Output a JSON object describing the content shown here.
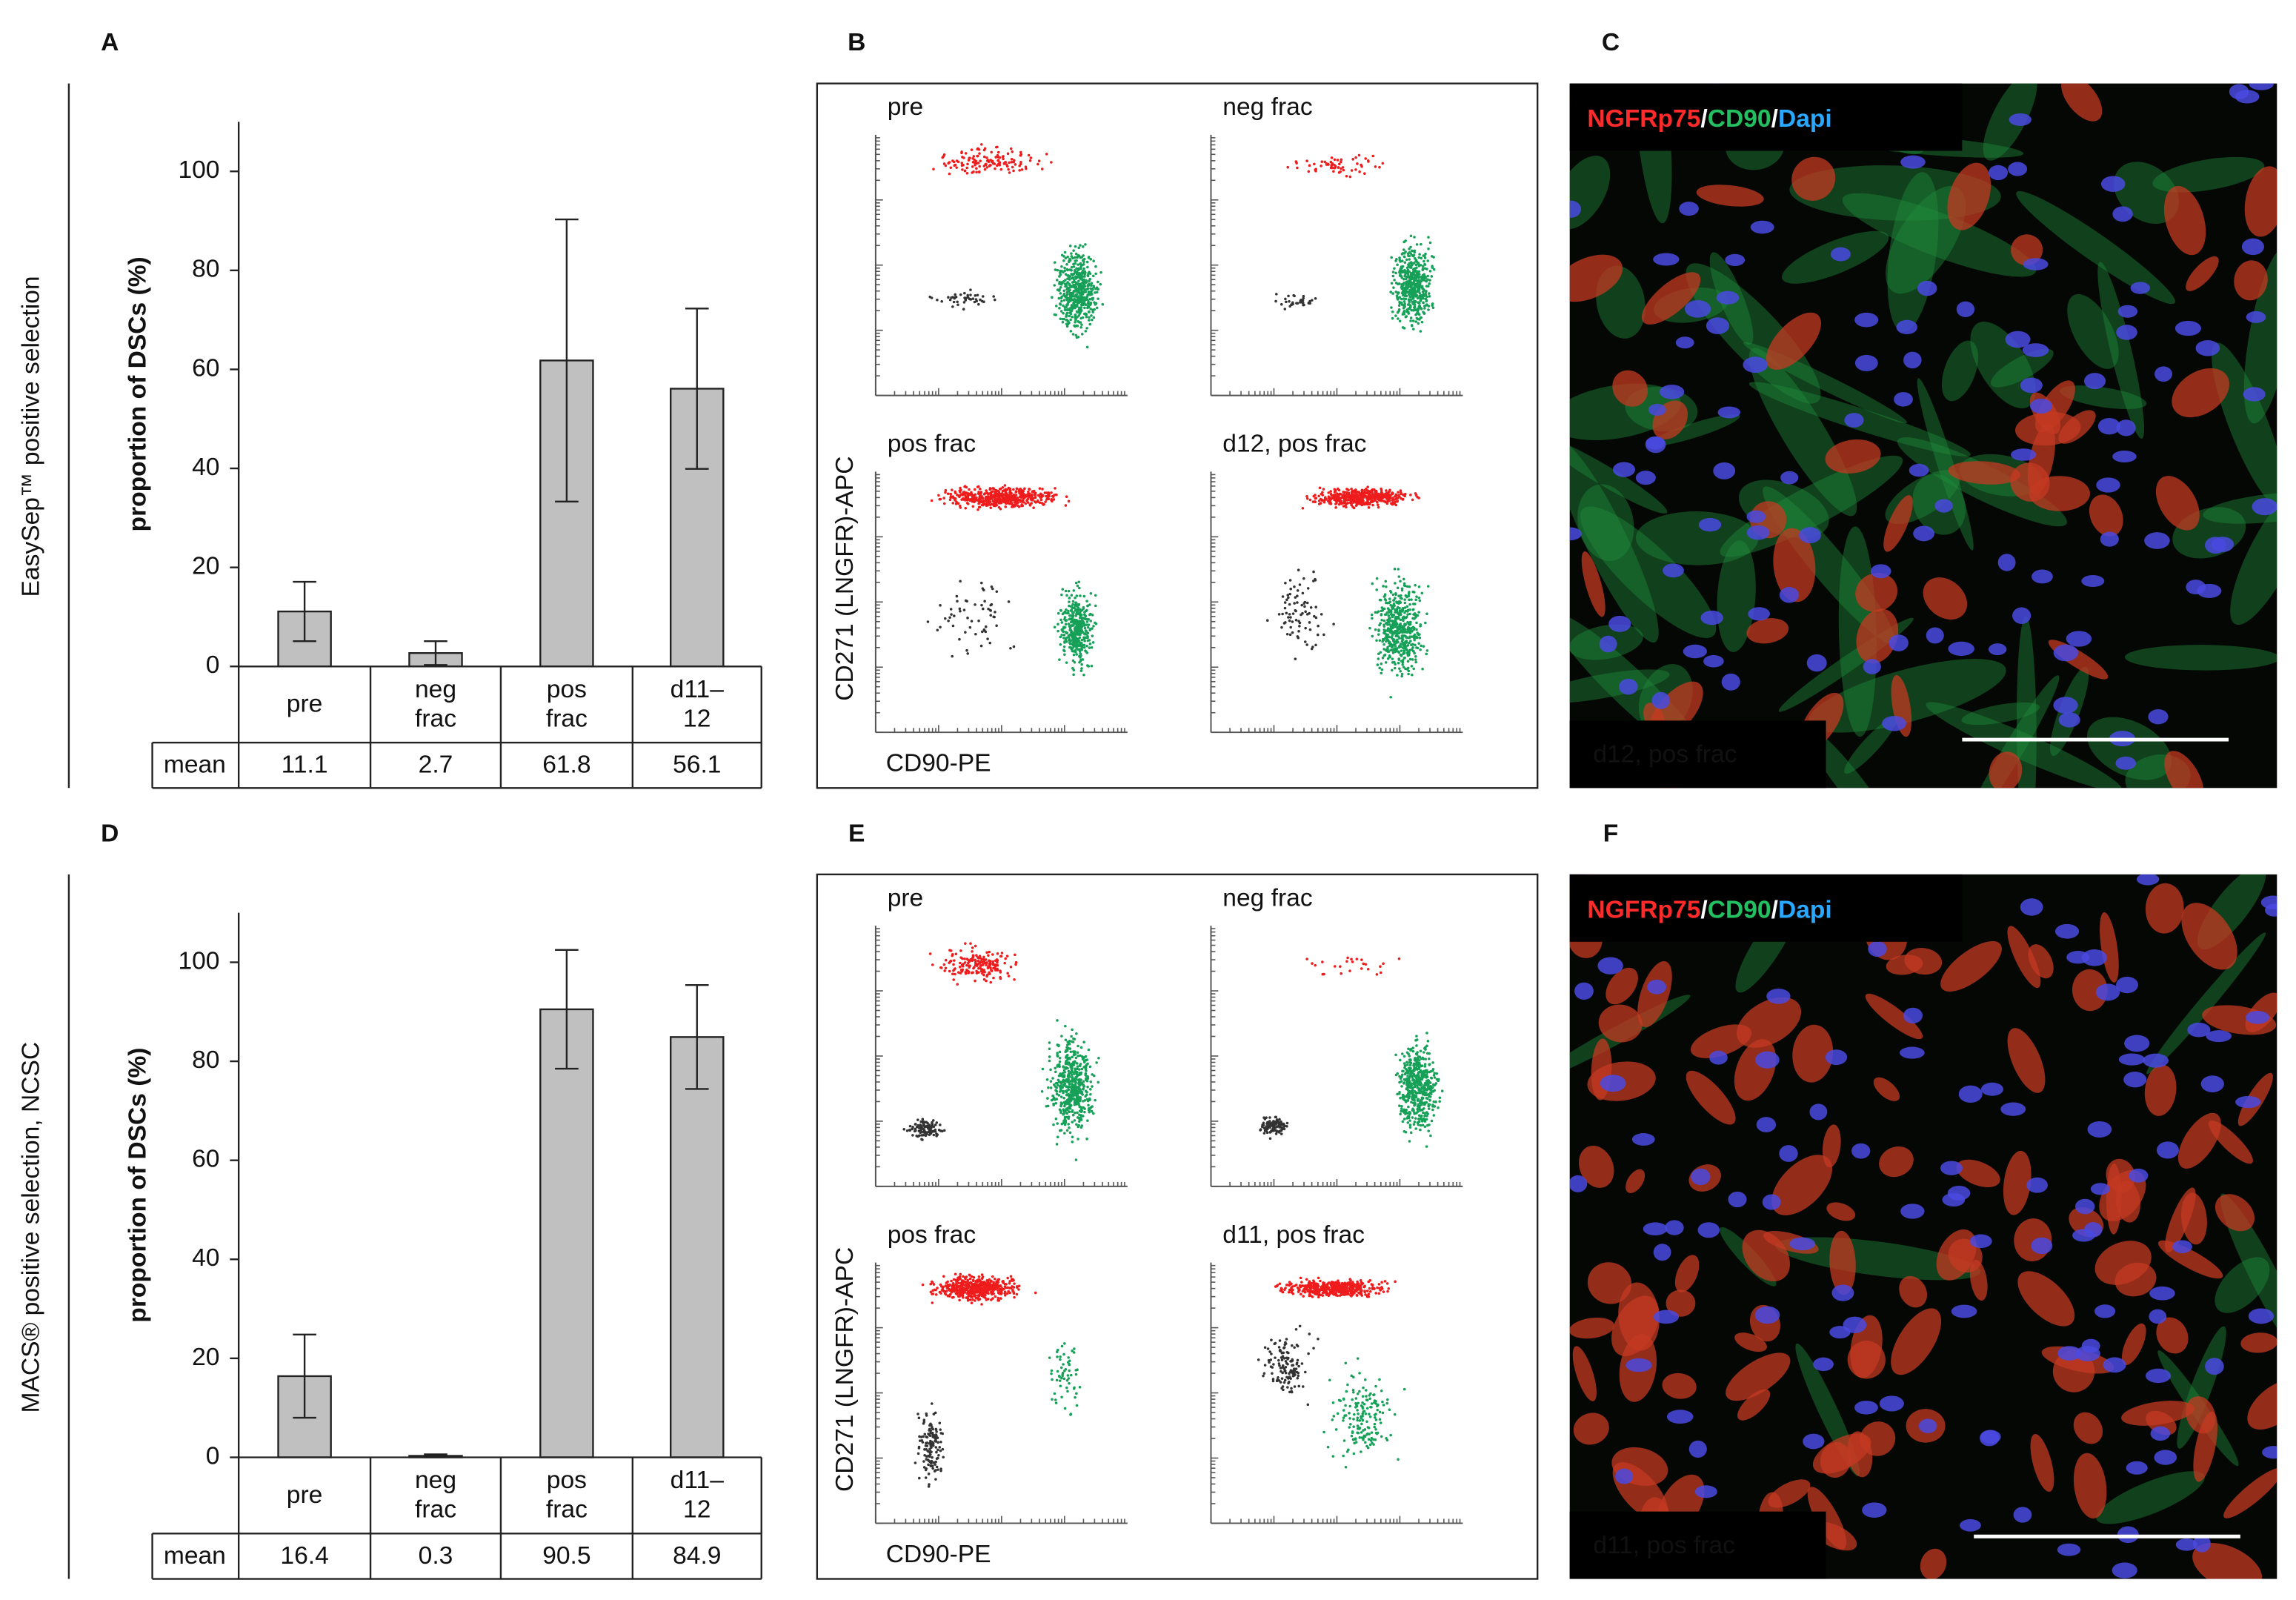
{
  "chart_data": [
    {
      "type": "bar",
      "ylabel": "proportion of DSCs (%)",
      "categories": [
        "pre",
        "neg frac",
        "pos frac",
        "d11–12"
      ],
      "values": [
        11.1,
        2.7,
        61.8,
        56.1
      ],
      "errors": [
        6,
        2.4,
        28.5,
        16.2
      ],
      "table_row_label": "mean",
      "color": "#c0c0c0",
      "ylim": [
        0,
        110
      ],
      "yticks": [
        0,
        20,
        40,
        60,
        80,
        100
      ]
    },
    {
      "type": "bar",
      "ylabel": "proportion of DSCs (%)",
      "categories": [
        "pre",
        "neg frac",
        "pos frac",
        "d11–12"
      ],
      "values": [
        16.4,
        0.3,
        90.5,
        84.9
      ],
      "errors": [
        8.4,
        0.3,
        12,
        10.5
      ],
      "table_row_label": "mean",
      "color": "#c0c0c0",
      "ylim": [
        0,
        110
      ],
      "yticks": [
        0,
        20,
        40,
        60,
        80,
        100
      ]
    }
  ],
  "rows": [
    {
      "chart_letter": "A",
      "side_label": "EasySep™ positive selection",
      "flow": {
        "letter": "B",
        "y_label": "CD271 (LNGFR)-APC",
        "x_label": "CD90-PE",
        "plots": [
          "pre",
          "neg frac",
          "pos frac",
          "d12, pos frac"
        ]
      },
      "image": {
        "letter": "C",
        "stain": [
          {
            "text": "NGFRp75",
            "color": "#ff2a2a"
          },
          {
            "text": "/",
            "color": "#ffffff"
          },
          {
            "text": "CD90",
            "color": "#22c060"
          },
          {
            "text": "/",
            "color": "#ffffff"
          },
          {
            "text": "Dapi",
            "color": "#2aa8ff"
          }
        ],
        "caption": "d12, pos frac"
      }
    },
    {
      "chart_letter": "D",
      "side_label": "MACS® positive selection, NCSC",
      "flow": {
        "letter": "E",
        "y_label": "CD271 (LNGFR)-APC",
        "x_label": "CD90-PE",
        "plots": [
          "pre",
          "neg frac",
          "pos frac",
          "d11, pos frac"
        ]
      },
      "image": {
        "letter": "F",
        "stain": [
          {
            "text": "NGFRp75",
            "color": "#ff2a2a"
          },
          {
            "text": "/",
            "color": "#ffffff"
          },
          {
            "text": "CD90",
            "color": "#22c060"
          },
          {
            "text": "/",
            "color": "#ffffff"
          },
          {
            "text": "Dapi",
            "color": "#2aa8ff"
          }
        ],
        "caption": "d11, pos frac"
      }
    }
  ]
}
